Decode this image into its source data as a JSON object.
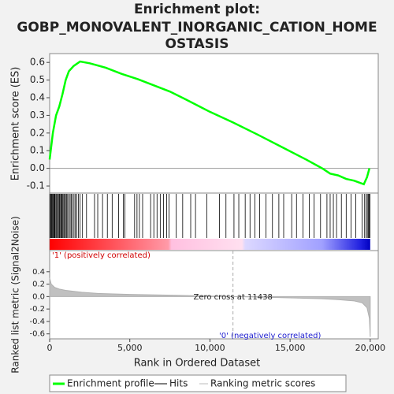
{
  "chart_data": {
    "type": "line",
    "title": [
      "Enrichment plot:",
      "GOBP_MONOVALENT_INORGANIC_CATION_HOME",
      "OSTASIS"
    ],
    "x_label": "Rank in Ordered Dataset",
    "xlim": [
      0,
      20500
    ],
    "xticks": [
      0,
      {
        "value": 5000,
        "label": "5,000"
      },
      {
        "value": 10000,
        "label": "10,000"
      },
      {
        "value": 15000,
        "label": "15,000"
      },
      {
        "value": 20000,
        "label": "20,000"
      }
    ],
    "es": {
      "ylabel": "Enrichment score (ES)",
      "color": "#00ff00",
      "ylim": [
        -0.14,
        0.65
      ],
      "yticks": [
        -0.1,
        {
          "value": 0,
          "label": "0.0"
        },
        0.1,
        0.2,
        0.3,
        0.4,
        0.5,
        0.6
      ],
      "x": [
        0,
        200,
        400,
        600,
        800,
        1000,
        1200,
        1500,
        1900,
        2500,
        3500,
        4500,
        5500,
        6500,
        7500,
        8500,
        10000,
        11438,
        13000,
        14500,
        16000,
        17000,
        17500,
        18000,
        18500,
        19000,
        19600,
        19800,
        19950
      ],
      "values": [
        0.05,
        0.2,
        0.3,
        0.35,
        0.42,
        0.5,
        0.55,
        0.58,
        0.605,
        0.595,
        0.57,
        0.535,
        0.505,
        0.47,
        0.435,
        0.39,
        0.32,
        0.26,
        0.19,
        0.12,
        0.05,
        0.0,
        -0.03,
        -0.04,
        -0.06,
        -0.07,
        -0.09,
        -0.05,
        0.0
      ]
    },
    "hits": [
      20,
      60,
      110,
      150,
      200,
      250,
      300,
      340,
      400,
      450,
      520,
      580,
      620,
      680,
      720,
      760,
      820,
      880,
      930,
      990,
      1050,
      1120,
      1200,
      1280,
      1350,
      1430,
      1520,
      1600,
      1700,
      1800,
      1900,
      2050,
      2300,
      2800,
      3000,
      3300,
      3600,
      3900,
      4300,
      4600,
      4700,
      5300,
      5450,
      5600,
      5800,
      6300,
      6500,
      6700,
      6900,
      7100,
      7300,
      7450,
      7900,
      8300,
      8800,
      9100,
      9800,
      10600,
      11000,
      11500,
      11800,
      12200,
      12500,
      12800,
      13100,
      13500,
      13900,
      14300,
      14600,
      15100,
      15400,
      15800,
      16200,
      16500,
      16900,
      17300,
      17500,
      17700,
      17900,
      18200,
      18500,
      18800,
      19100,
      19500,
      19650,
      19750,
      19820,
      19880,
      19940,
      19980
    ],
    "metric": {
      "ylabel": "Ranked list metric (Signal2Noise)",
      "ylim": [
        -0.68,
        0.74
      ],
      "yticks": [
        -0.6,
        -0.4,
        -0.2,
        {
          "value": 0,
          "label": "0.0"
        },
        0.2,
        0.4
      ],
      "x": [
        0,
        100,
        300,
        600,
        1000,
        2000,
        3000,
        5000,
        8000,
        11438,
        13000,
        15000,
        17000,
        18000,
        19000,
        19500,
        19800,
        19950,
        20000
      ],
      "values": [
        0.3,
        0.2,
        0.15,
        0.12,
        0.1,
        0.07,
        0.05,
        0.035,
        0.02,
        0.0,
        -0.008,
        -0.02,
        -0.035,
        -0.05,
        -0.07,
        -0.1,
        -0.18,
        -0.35,
        -0.65
      ]
    },
    "zero_cross": 11438,
    "annotation": "Zero cross at 11438",
    "pos_label": "'1' (positively correlated)",
    "neg_label": "'0' (negatively correlated)",
    "legend": [
      "Enrichment profile",
      "Hits",
      "Ranking metric scores"
    ]
  }
}
